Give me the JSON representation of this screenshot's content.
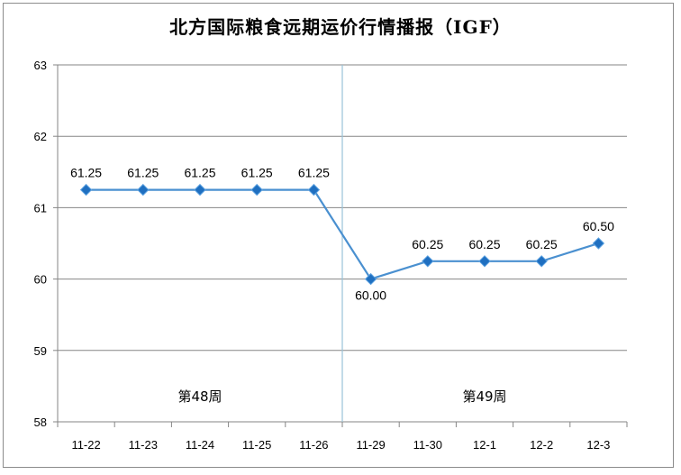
{
  "chart_data": {
    "type": "line",
    "title": "北方国际粮食远期运价行情播报（IGF）",
    "categories": [
      "11-22",
      "11-23",
      "11-24",
      "11-25",
      "11-26",
      "11-29",
      "11-30",
      "12-1",
      "12-2",
      "12-3"
    ],
    "series": [
      {
        "values": [
          61.25,
          61.25,
          61.25,
          61.25,
          61.25,
          60.0,
          60.25,
          60.25,
          60.25,
          60.5
        ]
      }
    ],
    "data_labels": [
      "61.25",
      "61.25",
      "61.25",
      "61.25",
      "61.25",
      "60.00",
      "60.25",
      "60.25",
      "60.25",
      "60.50"
    ],
    "ylim": [
      58,
      63
    ],
    "yticks": [
      "58",
      "59",
      "60",
      "61",
      "62",
      "63"
    ],
    "grid": true,
    "week_markers": [
      {
        "label": "第48周",
        "start_index": 0,
        "end_index": 4
      },
      {
        "label": "第49周",
        "start_index": 5,
        "end_index": 9
      }
    ],
    "colors": {
      "line": "#4a90d0",
      "marker": "#1f6fc0",
      "grid": "#868686",
      "divider": "#9ac3d8"
    }
  }
}
